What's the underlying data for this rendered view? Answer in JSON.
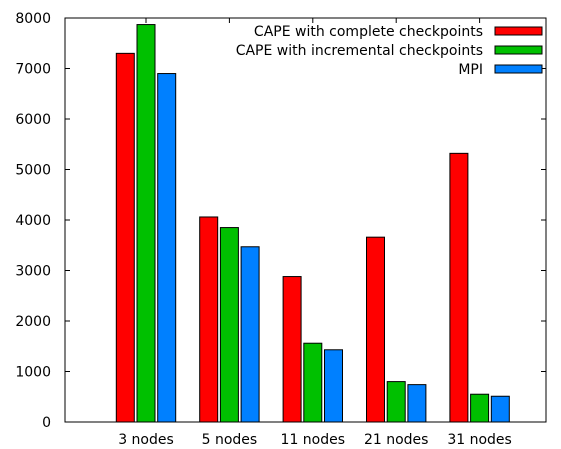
{
  "chart_data": {
    "type": "bar",
    "categories": [
      "3 nodes",
      "5 nodes",
      "11 nodes",
      "21 nodes",
      "31 nodes"
    ],
    "series": [
      {
        "name": "CAPE with complete checkpoints",
        "color": "#ff0000",
        "values": [
          7300,
          4060,
          2880,
          3660,
          5320
        ]
      },
      {
        "name": "CAPE with incremental checkpoints",
        "color": "#00c000",
        "values": [
          7870,
          3850,
          1560,
          800,
          550
        ]
      },
      {
        "name": "MPI",
        "color": "#0080ff",
        "values": [
          6900,
          3470,
          1430,
          740,
          510
        ]
      }
    ],
    "ylim": [
      0,
      8000
    ],
    "yticks": [
      "0",
      "1000",
      "2000",
      "3000",
      "4000",
      "5000",
      "6000",
      "7000",
      "8000"
    ],
    "title": "",
    "xlabel": "",
    "ylabel": "",
    "grid": false,
    "legend_position": "top-right"
  }
}
